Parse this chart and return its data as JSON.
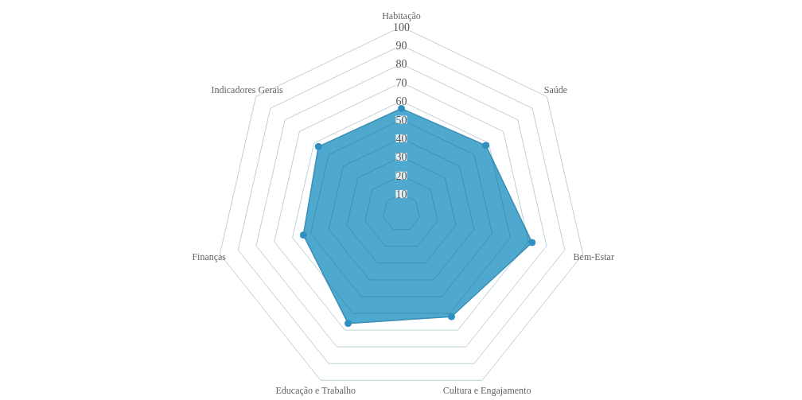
{
  "chart_data": {
    "type": "radar",
    "categories": [
      "Habitação",
      "Saúde",
      "Bem-Estar",
      "Cultura e Engajamento",
      "Educação e Trabalho",
      "Finanças",
      "Indicadores Gerais"
    ],
    "series": [
      {
        "color": "#4fa8cd",
        "values": [
          56,
          58,
          72,
          62,
          66,
          54,
          57
        ]
      }
    ],
    "ylim": [
      0,
      100
    ],
    "yticks": [
      10,
      20,
      30,
      40,
      50,
      60,
      70,
      80,
      90,
      100
    ],
    "grid": true,
    "marker": "circle"
  }
}
